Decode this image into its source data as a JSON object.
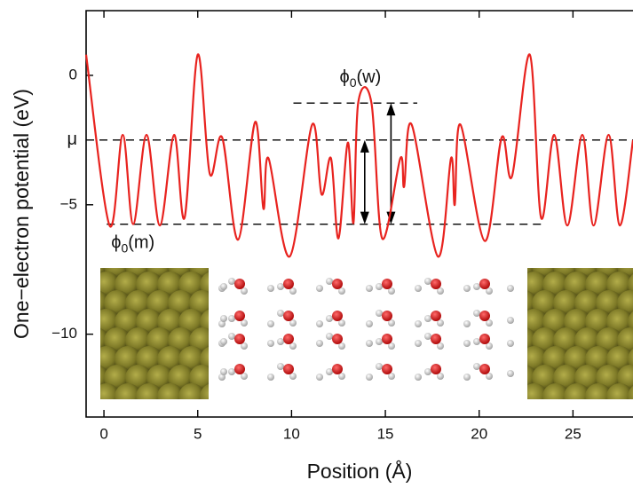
{
  "chart_data": {
    "type": "line",
    "x_label": "Position (Å)",
    "y_label": "One−electron potential (eV)",
    "xlim": [
      -0.95,
      28.2
    ],
    "ylim": [
      -13.2,
      2.5
    ],
    "xticks": [
      0,
      5,
      10,
      15,
      20,
      25
    ],
    "yticks": [
      0,
      {
        "value": -5,
        "label": "−5"
      },
      {
        "value": -10,
        "label": "−10"
      }
    ],
    "x": [
      -0.95,
      0.3,
      1.0,
      1.56,
      2.27,
      2.98,
      3.74,
      4.3,
      5.0,
      5.64,
      6.3,
      7.15,
      8.06,
      8.5,
      8.77,
      9.9,
      11.1,
      11.6,
      12.1,
      12.5,
      13.0,
      13.3,
      13.55,
      14.26,
      14.83,
      15.8,
      16.0,
      16.4,
      17.8,
      18.5,
      18.7,
      19.0,
      20.3,
      21.2,
      21.75,
      22.7,
      23.3,
      24.0,
      24.7,
      25.5,
      26.1,
      26.9,
      27.5,
      28.2
    ],
    "series": [
      {
        "name": "potential",
        "color": "#e8231f",
        "values": [
          0.8,
          -5.8,
          -2.3,
          -5.75,
          -2.3,
          -5.8,
          -2.3,
          -5.5,
          0.8,
          -3.8,
          -2.4,
          -6.35,
          -1.8,
          -5.15,
          -3.2,
          -7.0,
          -1.9,
          -4.6,
          -3.2,
          -6.3,
          -2.6,
          -5.7,
          -1.07,
          -1.07,
          -6.3,
          -3.2,
          -4.3,
          -1.9,
          -7.0,
          -3.2,
          -5.0,
          -1.9,
          -6.4,
          -2.4,
          -3.9,
          0.8,
          -5.5,
          -2.3,
          -5.8,
          -2.3,
          -5.8,
          -2.3,
          -5.8,
          -2.5
        ]
      }
    ],
    "reference_lines": [
      {
        "value": -2.5,
        "x_range": [
          -0.95,
          28.2
        ],
        "label": "μ"
      },
      {
        "value": -1.07,
        "x_range": [
          10.1,
          16.7
        ],
        "symbol": "ϕ",
        "subscript": "0",
        "suffix": "(w)"
      },
      {
        "value": -5.75,
        "x_range": [
          0.15,
          23.4
        ],
        "symbol": "ϕ",
        "subscript": "0",
        "suffix": "(m)"
      }
    ],
    "arrows": [
      {
        "x": 13.9,
        "from": -2.5,
        "to": -5.75
      },
      {
        "x": 15.3,
        "from": -1.07,
        "to": -5.75
      }
    ]
  }
}
